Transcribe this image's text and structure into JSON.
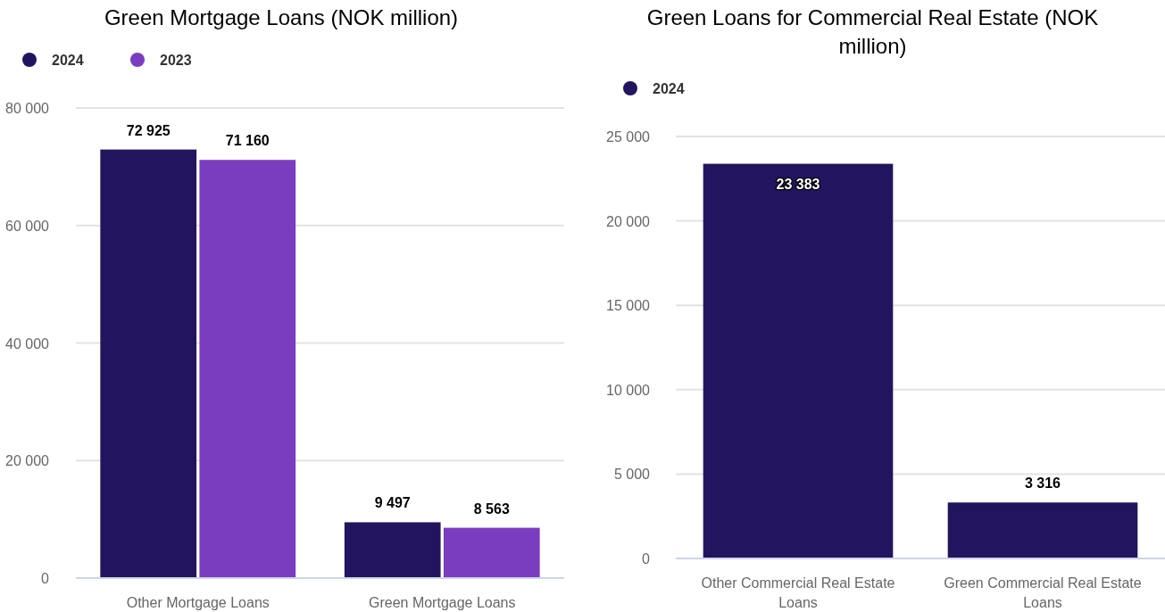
{
  "chart_data": [
    {
      "type": "bar",
      "title": "Green Mortgage Loans (NOK million)",
      "categories": [
        "Other Mortgage Loans",
        "Green Mortgage Loans"
      ],
      "series": [
        {
          "name": "2024",
          "color": "#23145f",
          "values": [
            72925,
            9497
          ],
          "value_labels": [
            "72 925",
            "9 497"
          ]
        },
        {
          "name": "2023",
          "color": "#7b3dbf",
          "values": [
            71160,
            8563
          ],
          "value_labels": [
            "71 160",
            "8 563"
          ]
        }
      ],
      "ylim": [
        0,
        80000
      ],
      "yticks": [
        {
          "value": 0,
          "label": "0"
        },
        {
          "value": 20000,
          "label": "20 000"
        },
        {
          "value": 40000,
          "label": "40 000"
        },
        {
          "value": 60000,
          "label": "60 000"
        },
        {
          "value": 80000,
          "label": "80 000"
        }
      ],
      "grid": "y",
      "legend": "top left"
    },
    {
      "type": "bar",
      "title": "Green Loans for Commercial Real Estate (NOK million)",
      "categories": [
        "Other Commercial Real Estate Loans",
        "Green Commercial Real Estate Loans"
      ],
      "series": [
        {
          "name": "2024",
          "color": "#23145f",
          "values": [
            23383,
            3316
          ],
          "value_labels": [
            "23 383",
            "3 316"
          ]
        }
      ],
      "ylim": [
        0,
        25000
      ],
      "yticks": [
        {
          "value": 0,
          "label": "0"
        },
        {
          "value": 5000,
          "label": "5 000"
        },
        {
          "value": 10000,
          "label": "10 000"
        },
        {
          "value": 15000,
          "label": "15 000"
        },
        {
          "value": 20000,
          "label": "20 000"
        },
        {
          "value": 25000,
          "label": "25 000"
        }
      ],
      "grid": "y",
      "legend": "top left"
    }
  ]
}
